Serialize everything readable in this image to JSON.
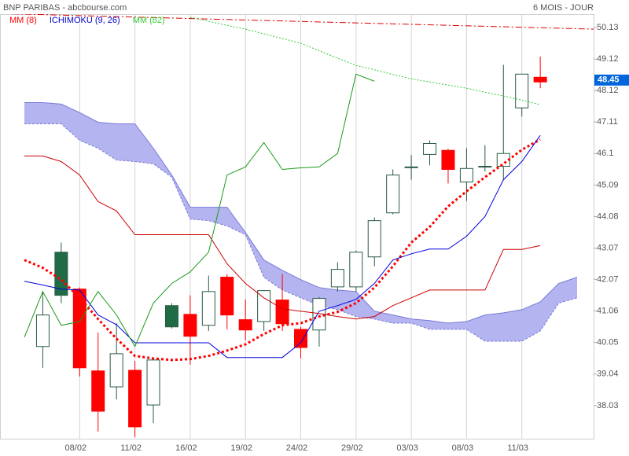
{
  "chart_data": {
    "type": "candlestick",
    "title": "BNP PARIBAS - abcbourse.com",
    "subtitle": "6 MOIS - JOUR",
    "categories": [
      null,
      null,
      null,
      "08/02",
      null,
      null,
      "11/02",
      null,
      null,
      "16/02",
      null,
      null,
      "19/02",
      null,
      null,
      "24/02",
      null,
      null,
      "29/02",
      null,
      null,
      "03/03",
      null,
      null,
      "08/03",
      null,
      null,
      "11/03",
      null,
      null,
      null
    ],
    "ylim": [
      36.97,
      50.56
    ],
    "yticks": [
      38.03,
      39.04,
      40.05,
      41.06,
      42.07,
      43.07,
      44.08,
      45.09,
      46.1,
      47.11,
      48.12,
      49.12,
      50.13
    ],
    "grid": "x",
    "candles": {
      "open": [
        null,
        39.92,
        41.56,
        41.76,
        39.14,
        38.63,
        39.16,
        38.05,
        40.55,
        40.95,
        40.6,
        42.14,
        40.78,
        40.72,
        41.41,
        40.47,
        40.45,
        41.83,
        41.83,
        42.79,
        44.2,
        45.67,
        46.07,
        46.2,
        45.19,
        45.69,
        45.69,
        47.56,
        48.54,
        null,
        null
      ],
      "high": [
        null,
        41.68,
        43.25,
        41.81,
        40.37,
        40.67,
        39.46,
        39.54,
        41.31,
        41.56,
        42.19,
        42.24,
        41.43,
        41.73,
        42.24,
        40.55,
        41.51,
        42.62,
        42.99,
        44.05,
        45.59,
        46.05,
        46.52,
        46.25,
        46.27,
        46.37,
        48.94,
        48.64,
        49.2,
        null,
        null
      ],
      "low": [
        null,
        39.24,
        41.31,
        38.96,
        37.2,
        38.23,
        37.02,
        37.47,
        40.5,
        39.34,
        40.42,
        40.47,
        40.12,
        40.42,
        40.42,
        39.54,
        39.92,
        41.68,
        41.68,
        42.49,
        44.15,
        45.26,
        45.72,
        45.14,
        44.58,
        45.52,
        45.26,
        47.28,
        48.19,
        null,
        null
      ],
      "close": [
        null,
        40.93,
        42.94,
        39.24,
        37.85,
        39.69,
        37.35,
        39.49,
        41.23,
        40.25,
        41.68,
        40.93,
        40.45,
        41.71,
        40.65,
        39.89,
        41.46,
        42.39,
        42.94,
        43.95,
        45.41,
        45.67,
        46.42,
        45.59,
        45.62,
        45.69,
        46.1,
        48.64,
        48.39,
        null,
        null
      ],
      "colors": [
        null,
        "#ffffff",
        "#1f6b45",
        "#ff0000",
        "#ff0000",
        "#ffffff",
        "#ff0000",
        "#ffffff",
        "#1f6b45",
        "#ff0000",
        "#ffffff",
        "#ff0000",
        "#ff0000",
        "#ffffff",
        "#ff0000",
        "#ff0000",
        "#ffffff",
        "#ffffff",
        "#ffffff",
        "#ffffff",
        "#ffffff",
        "#ffffff",
        "#ffffff",
        "#ff0000",
        "#ffffff",
        "#ffffff",
        "#ffffff",
        "#ffffff",
        "#ff0000",
        null,
        null
      ],
      "outline": "#2b5a44"
    },
    "series": [
      {
        "name": "MM (8)",
        "color": "#ff0000",
        "style": "dotted",
        "values": [
          42.69,
          42.44,
          42.06,
          41.48,
          40.8,
          40.17,
          39.62,
          39.54,
          39.49,
          39.52,
          39.62,
          39.79,
          39.99,
          40.32,
          40.6,
          40.67,
          40.88,
          41.03,
          41.31,
          41.81,
          42.49,
          43.25,
          43.75,
          44.41,
          44.89,
          45.34,
          45.77,
          46.22,
          46.55,
          null,
          null
        ]
      },
      {
        "name": "ICHIMOKU (9, 26)",
        "color": "#0000cc",
        "lines": [
          {
            "color": "#0000dd",
            "values": [
              42.01,
              41.89,
              41.76,
              41.73,
              40.93,
              40.62,
              40.04,
              40.04,
              40.04,
              40.04,
              40.04,
              39.57,
              39.57,
              39.57,
              39.57,
              40.04,
              41.05,
              41.23,
              41.43,
              41.94,
              42.69,
              42.89,
              43.04,
              43.04,
              43.45,
              44.08,
              45.26,
              45.84,
              46.68,
              null,
              null
            ]
          },
          {
            "color": "#cc0000",
            "values": [
              46.02,
              46.02,
              45.84,
              45.41,
              44.56,
              44.26,
              43.5,
              43.5,
              43.5,
              43.5,
              43.5,
              42.57,
              41.94,
              41.48,
              41.13,
              41.05,
              40.98,
              40.88,
              40.8,
              40.88,
              41.23,
              41.48,
              41.73,
              41.73,
              41.73,
              41.73,
              43.03,
              43.03,
              43.15,
              null,
              null
            ]
          },
          {
            "color": "#1a9a1a",
            "values": [
              40.22,
              41.68,
              40.6,
              40.72,
              41.68,
              40.93,
              39.92,
              41.31,
              41.94,
              42.31,
              42.94,
              45.41,
              45.67,
              46.45,
              45.59,
              45.64,
              45.67,
              46.1,
              48.64,
              48.41,
              null,
              null,
              null,
              null,
              null,
              null,
              null,
              null,
              null,
              null,
              null
            ]
          }
        ],
        "cloud": {
          "fill": "#b4b4f0",
          "line": "#7a7ad8",
          "upper": [
            47.73,
            47.73,
            47.68,
            47.41,
            47.1,
            47.05,
            47.05,
            46.27,
            45.41,
            44.38,
            44.38,
            44.38,
            43.57,
            42.69,
            42.36,
            42.06,
            41.81,
            41.73,
            41.68,
            41.05,
            40.93,
            40.8,
            40.75,
            40.67,
            40.72,
            40.93,
            41.0,
            41.1,
            41.35,
            41.94,
            42.14
          ],
          "lower": [
            47.05,
            47.05,
            47.05,
            46.52,
            46.27,
            45.89,
            45.84,
            45.77,
            45.34,
            44.0,
            43.95,
            43.78,
            43.5,
            42.14,
            41.73,
            41.48,
            41.23,
            41.1,
            40.88,
            40.8,
            40.67,
            40.67,
            40.47,
            40.47,
            40.47,
            40.09,
            40.09,
            40.09,
            40.42,
            41.31,
            41.48
          ]
        }
      },
      {
        "name": "MM (82)",
        "color": "#33cc33",
        "style": "dotted",
        "values": [
          null,
          null,
          null,
          null,
          null,
          null,
          null,
          null,
          null,
          50.46,
          50.33,
          50.2,
          50.08,
          49.93,
          49.78,
          49.63,
          49.39,
          49.15,
          48.92,
          48.78,
          48.63,
          48.49,
          48.39,
          48.29,
          48.19,
          48.06,
          47.94,
          47.81,
          47.66,
          null,
          null
        ]
      }
    ],
    "trendline": {
      "color": "#dd0000",
      "start": 50.58,
      "end": 50.08
    },
    "last_price": 48.45,
    "last_price_color": "#0066dd"
  }
}
